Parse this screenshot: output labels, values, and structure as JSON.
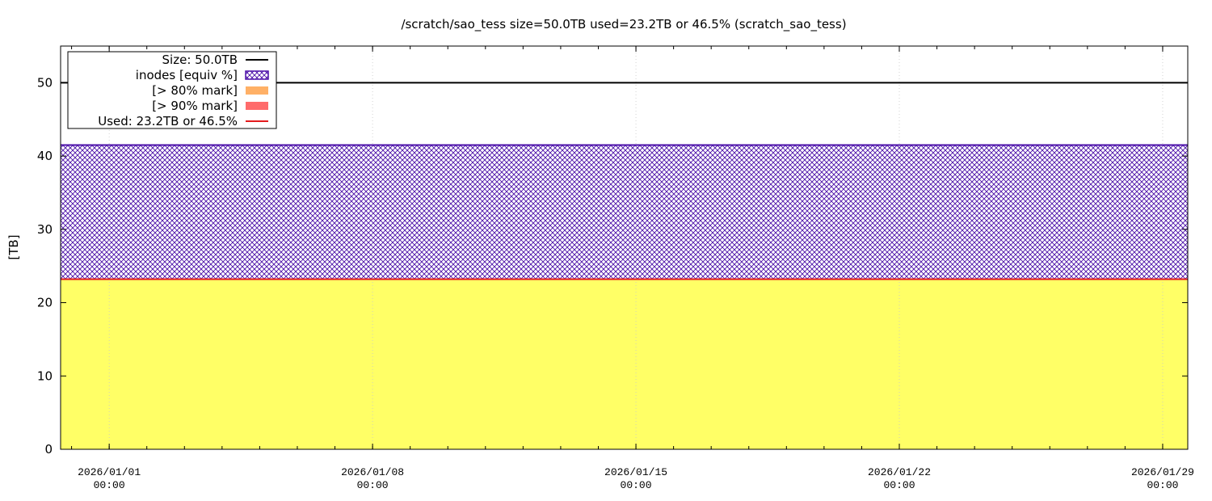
{
  "chart_data": {
    "type": "area",
    "title": "/scratch/sao_tess size=50.0TB used=23.2TB or 46.5% (scratch_sao_tess)",
    "ylabel": "[TB]",
    "xlabel": "",
    "ylim": [
      0,
      55
    ],
    "xlim": [
      "2025/12/30 17:00",
      "2026/01/29 16:00"
    ],
    "y_ticks": [
      0,
      10,
      20,
      30,
      40,
      50
    ],
    "x_ticks": [
      {
        "value": "2026/01/01 00:00",
        "date": "2026/01/01",
        "time": "00:00"
      },
      {
        "value": "2026/01/08 00:00",
        "date": "2026/01/08",
        "time": "00:00"
      },
      {
        "value": "2026/01/15 00:00",
        "date": "2026/01/15",
        "time": "00:00"
      },
      {
        "value": "2026/01/22 00:00",
        "date": "2026/01/22",
        "time": "00:00"
      },
      {
        "value": "2026/01/29 00:00",
        "date": "2026/01/29",
        "time": "00:00"
      }
    ],
    "grid": true,
    "legend_position": "top-left",
    "series": [
      {
        "name": "Size: 50.0TB",
        "kind": "line",
        "color": "#000000",
        "x": [
          "2025/12/30 17:00",
          "2026/01/29 16:00"
        ],
        "values": [
          50.0,
          50.0
        ]
      },
      {
        "name": "inodes [equiv %]",
        "kind": "hatched-area",
        "color": "#4b0fa8",
        "x": [
          "2025/12/30 17:00",
          "2026/01/29 16:00"
        ],
        "values": [
          41.5,
          41.5
        ]
      },
      {
        "name": "[> 80% mark]",
        "kind": "area",
        "color": "#ffb066",
        "x": [],
        "values": []
      },
      {
        "name": "[> 90% mark]",
        "kind": "area",
        "color": "#ff6b6b",
        "x": [],
        "values": []
      },
      {
        "name": "Used: 23.2TB or 46.5%",
        "kind": "line-area",
        "color": "#e31a1c",
        "fill": "#ffff66",
        "x": [
          "2025/12/30 17:00",
          "2026/01/29 16:00"
        ],
        "values": [
          23.2,
          23.2
        ]
      }
    ]
  }
}
